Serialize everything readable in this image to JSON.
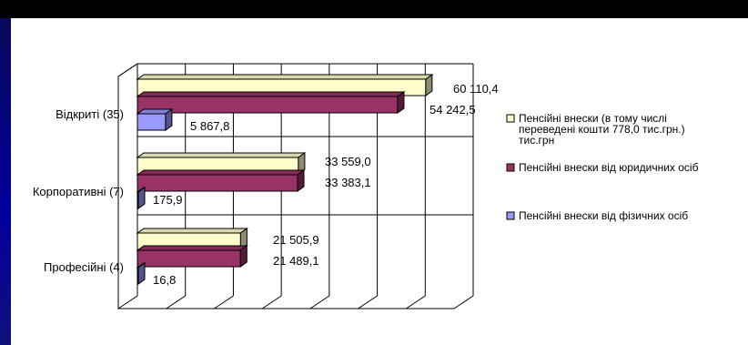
{
  "chart_data": {
    "type": "bar",
    "orientation": "horizontal",
    "three_d": true,
    "categories": [
      "Відкриті (35)",
      "Корпоративні (7)",
      "Професійні (4)"
    ],
    "series": [
      {
        "name": "Пенсійні внески (в тому числі переведені кошти 778,0 тис.грн.) тис.грн",
        "name_lines": [
          "Пенсійні внески (в тому числі",
          "переведені кошти 778,0 тис.грн.)",
          "тис.грн"
        ],
        "color": "#FFFFCC",
        "values": [
          60110.4,
          33559.0,
          21505.9
        ],
        "labels": [
          "60 110,4",
          "33 559,0",
          "21 505,9"
        ]
      },
      {
        "name": "Пенсійні внески від юридичних осіб",
        "name_lines": [
          "Пенсійні внески від юридичних осіб"
        ],
        "color": "#993366",
        "values": [
          54242.5,
          33383.1,
          21489.1
        ],
        "labels": [
          "54 242,5",
          "33 383,1",
          "21 489,1"
        ]
      },
      {
        "name": "Пенсійні внески від фізичних осіб",
        "name_lines": [
          "Пенсійні внески від фізичних осіб"
        ],
        "color": "#9999FF",
        "values": [
          5867.8,
          175.9,
          16.8
        ],
        "labels": [
          "5 867,8",
          "175,9",
          "16,8"
        ]
      }
    ],
    "xlim": [
      0,
      70000
    ],
    "grid": true,
    "legend_position": "right"
  }
}
